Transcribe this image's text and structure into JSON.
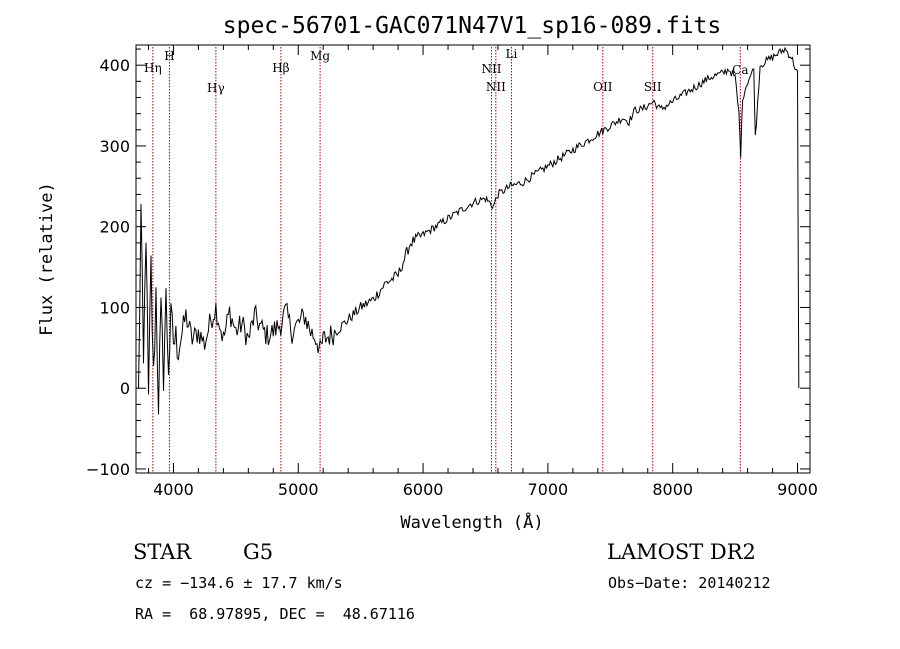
{
  "chart_data": {
    "type": "line",
    "title": "spec-56701-GAC071N47V1_sp16-089.fits",
    "xlabel": "Wavelength (Å)",
    "ylabel": "Flux (relative)",
    "xlim": [
      3700,
      9100
    ],
    "ylim": [
      -105,
      425
    ],
    "x_ticks": [
      4000,
      5000,
      6000,
      7000,
      8000,
      9000
    ],
    "y_ticks": [
      -100,
      0,
      100,
      200,
      300,
      400
    ],
    "grid": false,
    "series": [
      {
        "color": "#000000",
        "x": [
          3720,
          3740,
          3760,
          3780,
          3800,
          3820,
          3840,
          3860,
          3880,
          3900,
          3920,
          3940,
          3960,
          3980,
          4000,
          4050,
          4100,
          4150,
          4200,
          4250,
          4300,
          4340,
          4400,
          4450,
          4500,
          4550,
          4600,
          4650,
          4700,
          4750,
          4800,
          4860,
          4900,
          4950,
          5000,
          5050,
          5100,
          5150,
          5175,
          5200,
          5300,
          5400,
          5500,
          5600,
          5700,
          5800,
          5850,
          5900,
          6000,
          6100,
          6200,
          6300,
          6400,
          6500,
          6563,
          6600,
          6700,
          6800,
          6900,
          7000,
          7100,
          7200,
          7300,
          7400,
          7450,
          7500,
          7550,
          7600,
          7650,
          7700,
          7750,
          7800,
          7850,
          7900,
          8000,
          8100,
          8200,
          8300,
          8400,
          8450,
          8500,
          8530,
          8545,
          8560,
          8600,
          8650,
          8662,
          8700,
          8750,
          8800,
          8850,
          8900,
          8950,
          9000,
          9010
        ],
        "y": [
          -10,
          220,
          20,
          200,
          -20,
          150,
          10,
          120,
          -15,
          90,
          20,
          110,
          30,
          80,
          60,
          55,
          90,
          60,
          70,
          55,
          85,
          100,
          60,
          95,
          70,
          80,
          60,
          90,
          75,
          65,
          70,
          80,
          95,
          70,
          80,
          90,
          70,
          60,
          45,
          60,
          70,
          85,
          100,
          110,
          130,
          140,
          160,
          180,
          190,
          200,
          210,
          220,
          230,
          235,
          225,
          240,
          250,
          255,
          265,
          275,
          285,
          295,
          305,
          315,
          320,
          325,
          330,
          335,
          330,
          345,
          345,
          350,
          355,
          345,
          355,
          365,
          375,
          385,
          390,
          395,
          385,
          340,
          290,
          360,
          380,
          395,
          310,
          400,
          405,
          410,
          415,
          420,
          410,
          390,
          0
        ]
      }
    ],
    "spectral_lines": [
      {
        "name": "Hη",
        "x": 3835
      },
      {
        "name": "H",
        "x": 3968
      },
      {
        "name": "Hγ",
        "x": 4340
      },
      {
        "name": "Hβ",
        "x": 4861
      },
      {
        "name": "Mg",
        "x": 5175
      },
      {
        "name": "NII",
        "x": 6548
      },
      {
        "name": "NII",
        "x": 6583
      },
      {
        "name": "Li",
        "x": 6708
      },
      {
        "name": "OII",
        "x": 7440
      },
      {
        "name": "SII",
        "x": 7840
      },
      {
        "name": "Ca",
        "x": 8542
      }
    ]
  },
  "info": {
    "object_class": "STAR",
    "subclass": "G5",
    "survey": "LAMOST DR2",
    "cz": "cz = −134.6 ± 17.7 km/s",
    "obs_date": "Obs−Date: 20140212",
    "coords": "RA =  68.97895, DEC =  48.67116"
  }
}
